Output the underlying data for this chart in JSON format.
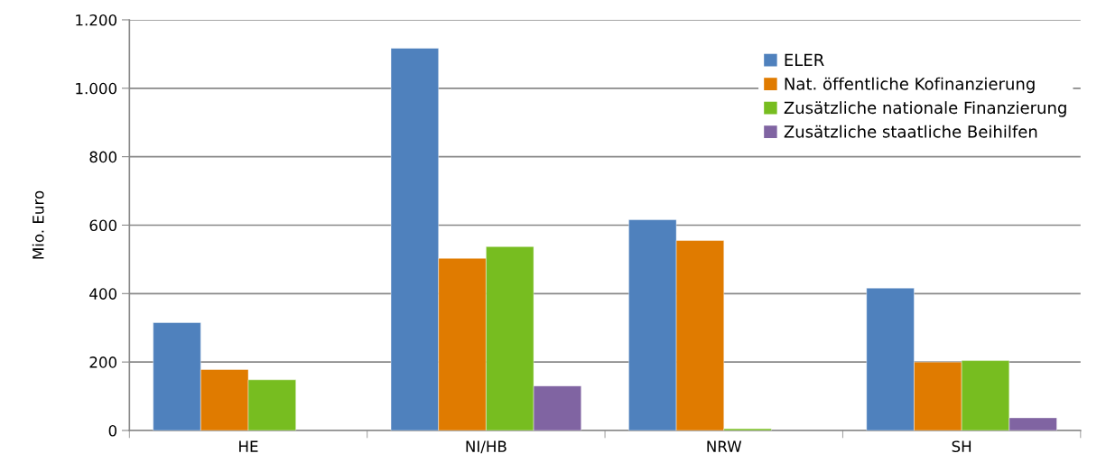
{
  "chart_data": {
    "type": "bar",
    "ylabel": "Mio. Euro",
    "categories": [
      "HE",
      "NI/HB",
      "NRW",
      "SH"
    ],
    "series": [
      {
        "name": "ELER",
        "color": "#4f81bd",
        "values": [
          315,
          1117,
          616,
          416
        ]
      },
      {
        "name": "Nat. öffentliche Kofinanzierung",
        "color": "#e07b00",
        "values": [
          178,
          503,
          555,
          200
        ]
      },
      {
        "name": "Zusätzliche nationale Finanzierung",
        "color": "#77bd20",
        "values": [
          148,
          537,
          5,
          204
        ]
      },
      {
        "name": "Zusätzliche staatliche Beihilfen",
        "color": "#8064a2",
        "values": [
          null,
          130,
          null,
          37
        ]
      }
    ],
    "ylim": [
      0,
      1200
    ],
    "yticks": [
      0,
      200,
      400,
      600,
      800,
      {
        "value": 1000,
        "label": "1.000"
      },
      {
        "value": 1200,
        "label": "1.200"
      }
    ],
    "grid": "y",
    "legend": "top right"
  }
}
